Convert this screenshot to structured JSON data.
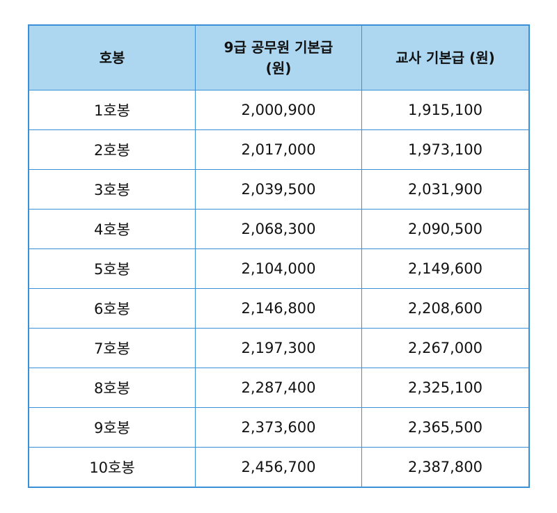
{
  "table": {
    "header_color": "#add6f0",
    "border_color": "#3a8fd6",
    "columns": [
      {
        "label": "호봉"
      },
      {
        "label_line1": "9급 공무원 기본급",
        "label_line2": "(원)"
      },
      {
        "label": "교사 기본급 (원)"
      }
    ],
    "rows": [
      {
        "step": "1호봉",
        "civil": "2,000,900",
        "teacher": "1,915,100"
      },
      {
        "step": "2호봉",
        "civil": "2,017,000",
        "teacher": "1,973,100"
      },
      {
        "step": "3호봉",
        "civil": "2,039,500",
        "teacher": "2,031,900"
      },
      {
        "step": "4호봉",
        "civil": "2,068,300",
        "teacher": "2,090,500"
      },
      {
        "step": "5호봉",
        "civil": "2,104,000",
        "teacher": "2,149,600"
      },
      {
        "step": "6호봉",
        "civil": "2,146,800",
        "teacher": "2,208,600"
      },
      {
        "step": "7호봉",
        "civil": "2,197,300",
        "teacher": "2,267,000"
      },
      {
        "step": "8호봉",
        "civil": "2,287,400",
        "teacher": "2,325,100"
      },
      {
        "step": "9호봉",
        "civil": "2,373,600",
        "teacher": "2,365,500"
      },
      {
        "step": "10호봉",
        "civil": "2,456,700",
        "teacher": "2,387,800"
      }
    ]
  }
}
